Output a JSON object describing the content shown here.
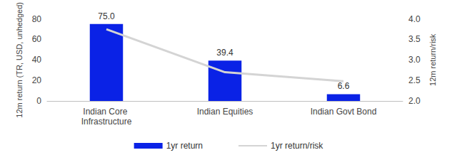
{
  "chart_data": {
    "type": "bar",
    "categories": [
      "Indian Core Infrastructure",
      "Indian Equities",
      "Indian Govt Bond"
    ],
    "y_label": "12m return (TR, USD, unhedged)",
    "y2_label": "12m return/risk",
    "ylim": [
      0,
      80
    ],
    "yticks": [
      0,
      20,
      40,
      60,
      80
    ],
    "y2lim": [
      2,
      4
    ],
    "y2ticks": [
      {
        "value": 2,
        "label": "2.0"
      },
      {
        "value": 2.5,
        "label": "2.5"
      },
      {
        "value": 3,
        "label": "3.0"
      },
      {
        "value": 3.5,
        "label": "3.5"
      },
      {
        "value": 4,
        "label": "4.0"
      }
    ],
    "series": [
      {
        "name": "1yr return",
        "type": "bar",
        "color": "#0a22e6",
        "values": [
          75.0,
          39.4,
          6.6
        ],
        "value_labels": [
          "75.0",
          "39.4",
          "6.6"
        ],
        "data_labels": true
      },
      {
        "name": "1yr return/risk",
        "type": "line",
        "axis": "y2",
        "color": "#d4d4d4",
        "values": [
          3.75,
          2.7,
          2.48
        ],
        "marker": "none",
        "line_style": "solid"
      }
    ],
    "legend": "bottom",
    "grid": false
  }
}
